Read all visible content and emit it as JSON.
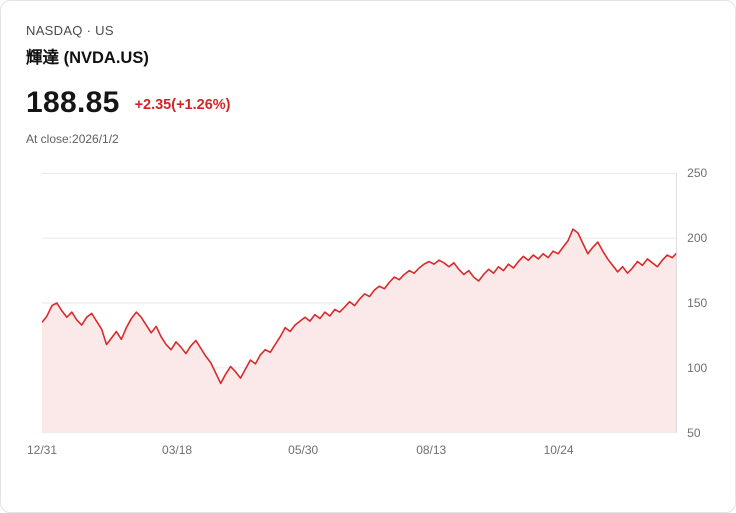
{
  "header": {
    "market_line": "NASDAQ · US",
    "stock_name": "輝達 (NVDA.US)"
  },
  "quote": {
    "price": "188.85",
    "change": "+2.35(+1.26%)",
    "close_note": "At close:2026/1/2"
  },
  "colors": {
    "line": "#d92a2a",
    "fill": "#fbe9e9",
    "change_text": "#d42525",
    "grid": "#e7e7e7",
    "axis": "#d8d8d8",
    "tick_text": "#6f6f6f"
  },
  "chart_data": {
    "type": "area",
    "title": "",
    "xlabel": "",
    "ylabel": "",
    "ylim": [
      50,
      250
    ],
    "yticks": [
      250,
      200,
      150,
      100,
      50
    ],
    "grid": true,
    "legend": false,
    "xticks": [
      {
        "label": "12/31",
        "pos": 0.0
      },
      {
        "label": "03/18",
        "pos": 0.212
      },
      {
        "label": "05/30",
        "pos": 0.41
      },
      {
        "label": "08/13",
        "pos": 0.611
      },
      {
        "label": "10/24",
        "pos": 0.811
      }
    ],
    "values": [
      135,
      140,
      148,
      150,
      144,
      139,
      143,
      137,
      133,
      139,
      142,
      136,
      130,
      118,
      123,
      128,
      122,
      131,
      138,
      143,
      139,
      133,
      127,
      132,
      124,
      118,
      114,
      120,
      116,
      111,
      117,
      121,
      115,
      109,
      104,
      96,
      88,
      95,
      101,
      97,
      92,
      99,
      106,
      103,
      110,
      114,
      112,
      118,
      124,
      131,
      128,
      133,
      136,
      139,
      136,
      141,
      138,
      143,
      140,
      145,
      143,
      147,
      151,
      148,
      153,
      157,
      155,
      160,
      163,
      161,
      166,
      170,
      168,
      172,
      175,
      173,
      177,
      180,
      182,
      180,
      183,
      181,
      178,
      181,
      176,
      172,
      175,
      170,
      167,
      172,
      176,
      173,
      178,
      175,
      180,
      177,
      182,
      186,
      183,
      187,
      184,
      188,
      185,
      190,
      188,
      193,
      198,
      207,
      204,
      196,
      188,
      193,
      197,
      190,
      184,
      179,
      174,
      178,
      173,
      177,
      182,
      179,
      184,
      181,
      178,
      183,
      187,
      185,
      188.85
    ]
  }
}
